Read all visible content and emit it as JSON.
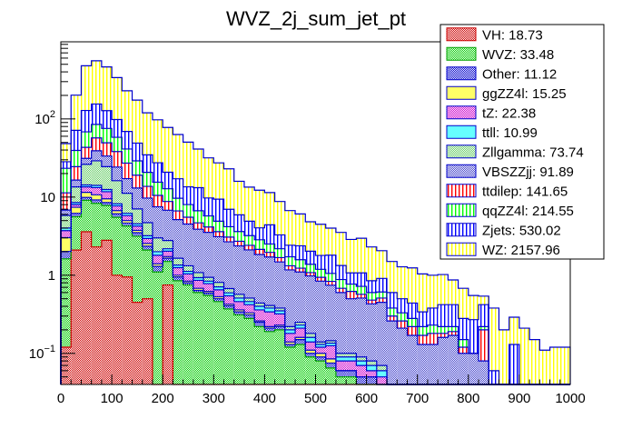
{
  "chart_data": {
    "type": "bar",
    "subtype": "stacked-histogram",
    "title": "WVZ_2j_sum_jet_pt",
    "xlabel": "",
    "ylabel": "",
    "x_range": [
      0,
      1000
    ],
    "bin_width": 20,
    "y_scale": "log",
    "ylim": [
      0.04,
      970
    ],
    "x_ticks": [
      "0",
      "100",
      "200",
      "300",
      "400",
      "500",
      "600",
      "700",
      "800",
      "900",
      "1000"
    ],
    "x_tick_values": [
      0,
      100,
      200,
      300,
      400,
      500,
      600,
      700,
      800,
      900,
      1000
    ],
    "y_ticks": [
      {
        "value": 0.1,
        "base": "10",
        "exp": "−1"
      },
      {
        "value": 1,
        "base": "1",
        "exp": ""
      },
      {
        "value": 10,
        "base": "10",
        "exp": ""
      },
      {
        "value": 100,
        "base": "10",
        "exp": "2"
      }
    ],
    "legend_position": "top-right",
    "stack_order_bottom_to_top": [
      "VH",
      "WVZ",
      "Other",
      "ggZZ4l",
      "tZ",
      "ttll",
      "Zllgamma",
      "VBSZZjj",
      "ttdilep",
      "qqZZ4l",
      "Zjets",
      "WZ"
    ],
    "series": [
      {
        "name": "VH",
        "integral": "18.73",
        "fill": "#e8a0a0",
        "line": "#cc0000",
        "pattern": "checker",
        "pattern_color": "#cc0000",
        "values": [
          0.12,
          2.1,
          3.6,
          2.3,
          2.8,
          1.0,
          0.95,
          0.45,
          0.5,
          0,
          0.75,
          0,
          0,
          0,
          0,
          0,
          0,
          0,
          0,
          0,
          0,
          0,
          0,
          0,
          0,
          0,
          0,
          0,
          0,
          0,
          0,
          0,
          0,
          0,
          0,
          0,
          0,
          0,
          0,
          0,
          0,
          0,
          0,
          0,
          0,
          0,
          0,
          0,
          0,
          0
        ]
      },
      {
        "name": "WVZ",
        "integral": "33.48",
        "fill": "#80e080",
        "line": "#00a000",
        "pattern": "checker",
        "pattern_color": "#00cc00",
        "values": [
          1.5,
          3.5,
          5.5,
          6.0,
          5.0,
          4.5,
          3.3,
          2.7,
          1.6,
          1.1,
          0.75,
          0.85,
          0.75,
          0.6,
          0.55,
          0.46,
          0.37,
          0.31,
          0.28,
          0.22,
          0.19,
          0.2,
          0.12,
          0.13,
          0.09,
          0.08,
          0.065,
          0.05,
          0.05,
          0.04,
          0.04,
          0.03,
          0.03,
          0,
          0,
          0,
          0,
          0,
          0,
          0,
          0,
          0,
          0,
          0,
          0,
          0,
          0,
          0,
          0,
          0
        ]
      },
      {
        "name": "Other",
        "integral": "11.12",
        "fill": "#8080e0",
        "line": "#0000cc",
        "pattern": "checker",
        "pattern_color": "#0000cc",
        "values": [
          0.4,
          0.6,
          0.8,
          0.9,
          0.7,
          0.6,
          0.4,
          0.35,
          0.25,
          0.2,
          0.15,
          0.1,
          0.05,
          0.04,
          0.04,
          0.04,
          0.035,
          0.03,
          0.03,
          0.03,
          0.02,
          0.02,
          0.01,
          0.02,
          0.01,
          0.01,
          0.01,
          0.01,
          0.01,
          0.01,
          0.01,
          0.01,
          0,
          0,
          0,
          0,
          0,
          0,
          0,
          0,
          0,
          0,
          0,
          0,
          0,
          0,
          0,
          0,
          0,
          0
        ]
      },
      {
        "name": "ggZZ4l",
        "integral": "15.25",
        "fill": "#ffff80",
        "line": "#0000cc",
        "pattern": "solid",
        "pattern_color": "#ffff66",
        "values": [
          1.0,
          1.2,
          1.6,
          1.5,
          1.0,
          0.6,
          0.35,
          0.25,
          0.2,
          0.1,
          0.08,
          0.05,
          0.04,
          0.04,
          0.03,
          0.03,
          0.02,
          0.02,
          0.02,
          0.01,
          0.01,
          0.01,
          0.01,
          0.01,
          0.01,
          0.01,
          0.01,
          0,
          0,
          0,
          0,
          0,
          0,
          0,
          0,
          0,
          0,
          0,
          0,
          0,
          0,
          0,
          0,
          0,
          0,
          0,
          0,
          0,
          0,
          0
        ]
      },
      {
        "name": "tZ",
        "integral": "22.38",
        "fill": "#e080e0",
        "line": "#0000cc",
        "pattern": "checker",
        "pattern_color": "#cc00cc",
        "values": [
          0.7,
          0.6,
          2.0,
          2.5,
          2.2,
          1.0,
          0.8,
          0.5,
          0.4,
          0.4,
          0.3,
          0.25,
          0.2,
          0.18,
          0.16,
          0.12,
          0.12,
          0.1,
          0.09,
          0.1,
          0.12,
          0.09,
          0.04,
          0.05,
          0.03,
          0.02,
          0.04,
          0.02,
          0.02,
          0.02,
          0.01,
          0.01,
          0.01,
          0.01,
          0.01,
          0,
          0,
          0,
          0,
          0,
          0,
          0,
          0,
          0,
          0,
          0,
          0,
          0,
          0,
          0
        ]
      },
      {
        "name": "ttll",
        "integral": "10.99",
        "fill": "#80ffff",
        "line": "#0000cc",
        "pattern": "solid",
        "pattern_color": "#66ffff",
        "values": [
          0.3,
          0.5,
          0.8,
          0.9,
          0.8,
          0.5,
          0.4,
          0.3,
          0.25,
          0.2,
          0.15,
          0.1,
          0.08,
          0.07,
          0.06,
          0.06,
          0.05,
          0.05,
          0.04,
          0.04,
          0.04,
          0.03,
          0.02,
          0.02,
          0.02,
          0.01,
          0.01,
          0.01,
          0.01,
          0.01,
          0.01,
          0.01,
          0,
          0,
          0,
          0,
          0,
          0,
          0,
          0,
          0,
          0,
          0,
          0,
          0,
          0,
          0,
          0,
          0,
          0
        ]
      },
      {
        "name": "Zllgamma",
        "integral": "73.74",
        "fill": "#b0e0b0",
        "line": "#0000cc",
        "pattern": "checker",
        "pattern_color": "#66cc66",
        "values": [
          1.8,
          5.0,
          12.0,
          15.0,
          12.0,
          8.0,
          5.0,
          2.5,
          1.5,
          1.0,
          0.6,
          0.3,
          0.2,
          0.15,
          0.1,
          0.1,
          0.08,
          0.06,
          0.05,
          0.04,
          0.03,
          0.03,
          0.02,
          0.02,
          0.02,
          0.01,
          0.01,
          0.01,
          0.01,
          0.01,
          0.01,
          0.01,
          0,
          0,
          0,
          0,
          0,
          0,
          0,
          0,
          0,
          0,
          0,
          0,
          0,
          0,
          0,
          0,
          0,
          0
        ]
      },
      {
        "name": "VBSZZjj",
        "integral": "91.89",
        "fill": "#a0a0e0",
        "line": "#0000cc",
        "pattern": "checker",
        "pattern_color": "#4444cc",
        "values": [
          1.0,
          3.0,
          5.0,
          10.0,
          9.0,
          8.0,
          6.0,
          6.0,
          5.0,
          4.5,
          4.0,
          3.5,
          3.2,
          2.8,
          2.6,
          2.3,
          2.0,
          1.8,
          1.6,
          1.4,
          1.3,
          1.1,
          0.95,
          0.85,
          0.8,
          0.7,
          0.6,
          0.5,
          0.4,
          0.42,
          0.35,
          0.38,
          0.22,
          0.2,
          0.16,
          0.13,
          0.13,
          0.16,
          0.17,
          0.1,
          0.1,
          0.08,
          0,
          0,
          0,
          0,
          0,
          0,
          0,
          0
        ]
      },
      {
        "name": "ttdilep",
        "integral": "141.65",
        "fill": "#ffffff",
        "line": "#0000cc",
        "pattern": "vlines",
        "pattern_color": "#ff0000",
        "values": [
          4.5,
          8.0,
          12.0,
          18.0,
          16.0,
          14.0,
          10.0,
          6.0,
          4.0,
          3.0,
          2.0,
          1.5,
          1.0,
          0.8,
          0.6,
          0.5,
          0.4,
          0.35,
          0.3,
          0.3,
          0.25,
          0.2,
          0.15,
          0.13,
          0.1,
          0.1,
          0.09,
          0.08,
          0.12,
          0.06,
          0.05,
          0.06,
          0.04,
          0.05,
          0.05,
          0.04,
          0.05,
          0.02,
          0.02,
          0.02,
          0,
          0.12,
          0,
          0,
          0,
          0,
          0,
          0,
          0,
          0
        ]
      },
      {
        "name": "qqZZ4l",
        "integral": "214.55",
        "fill": "#ffffff",
        "line": "#0000cc",
        "pattern": "vlines",
        "pattern_color": "#00ff00",
        "values": [
          12.0,
          15.0,
          25.0,
          28.0,
          26.0,
          20.0,
          14.0,
          10.0,
          7.0,
          5.0,
          4.0,
          3.0,
          2.5,
          2.0,
          1.6,
          1.3,
          1.1,
          0.9,
          0.8,
          0.7,
          0.55,
          0.5,
          0.4,
          0.35,
          0.3,
          0.25,
          0.22,
          0.2,
          0.15,
          0.15,
          0.12,
          0.1,
          0.08,
          0.07,
          0.06,
          0.05,
          0.05,
          0.04,
          0.03,
          0.03,
          0,
          0.02,
          0,
          0,
          0,
          0,
          0,
          0,
          0,
          0
        ]
      },
      {
        "name": "Zjets",
        "integral": "530.02",
        "fill": "#ffffff",
        "line": "#0000cc",
        "pattern": "vlines",
        "pattern_color": "#0000ff",
        "values": [
          5.0,
          32.0,
          60.0,
          70.0,
          52.0,
          40.0,
          28.0,
          20.0,
          14.0,
          12.0,
          8.0,
          7.5,
          5.5,
          6.5,
          4.0,
          4.5,
          2.8,
          2.3,
          1.7,
          1.2,
          1.9,
          1.1,
          0.7,
          0.8,
          0.65,
          0.6,
          0.75,
          0.45,
          0.3,
          0.35,
          0.25,
          0.3,
          0.22,
          0.17,
          0.16,
          0.12,
          0.15,
          0.2,
          0.2,
          0.13,
          0.17,
          0.2,
          0.06,
          0.04,
          0.13,
          0.04,
          0,
          0,
          0,
          0
        ]
      },
      {
        "name": "WZ",
        "integral": "2157.96",
        "fill": "#ffffff",
        "line": "#0000cc",
        "pattern": "vlines",
        "pattern_color": "#ffff00",
        "values": [
          20.0,
          130.0,
          350.0,
          400.0,
          335.0,
          240.0,
          160.0,
          125.0,
          85.0,
          70.0,
          57.0,
          46.0,
          37.0,
          28.0,
          22.0,
          18.0,
          16.0,
          10.0,
          8.5,
          8.2,
          7.0,
          5.5,
          4.3,
          3.7,
          2.8,
          2.7,
          2.2,
          2.2,
          1.8,
          1.9,
          1.45,
          1.15,
          0.9,
          0.78,
          0.8,
          0.7,
          0.62,
          0.6,
          0.45,
          0.4,
          0.28,
          0.12,
          0.32,
          0.16,
          0.16,
          0.17,
          0.15,
          0.11,
          0.12,
          0.12
        ]
      }
    ]
  }
}
